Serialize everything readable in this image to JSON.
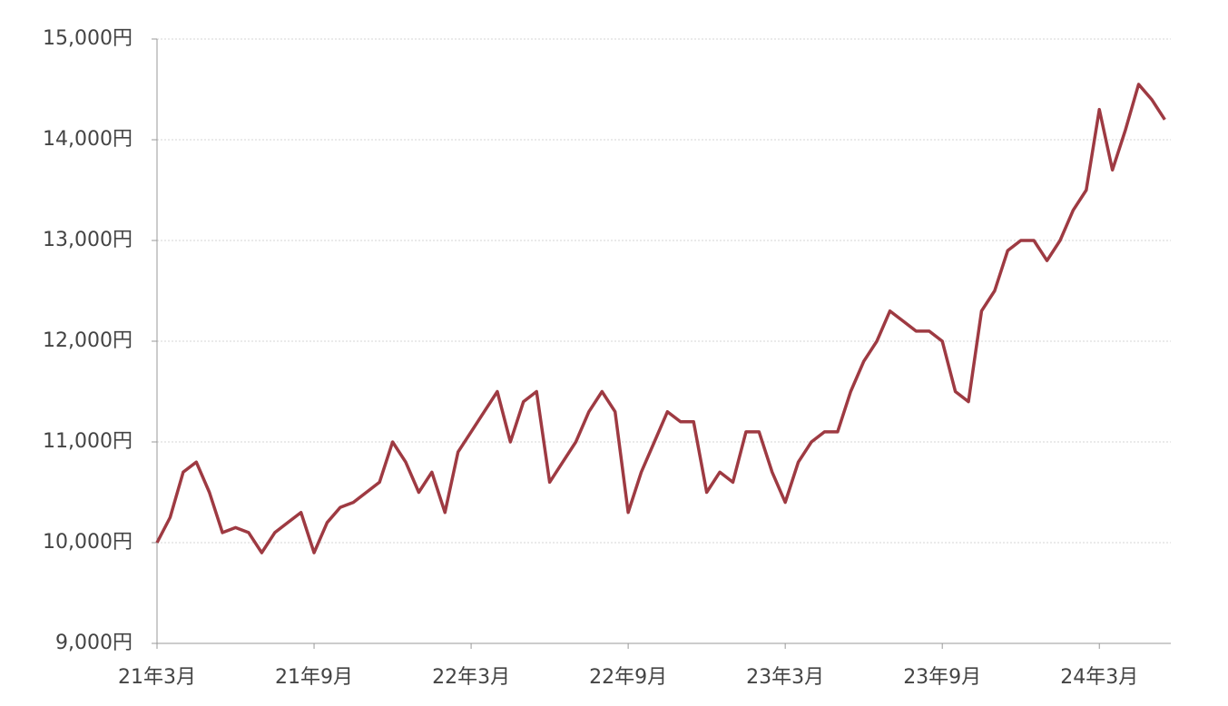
{
  "chart_data": {
    "type": "line",
    "categories": [
      "21年3月",
      null,
      null,
      null,
      null,
      null,
      null,
      null,
      null,
      null,
      null,
      null,
      "21年9月",
      null,
      null,
      null,
      null,
      null,
      null,
      null,
      null,
      null,
      null,
      null,
      "22年3月",
      null,
      null,
      null,
      null,
      null,
      null,
      null,
      null,
      null,
      null,
      null,
      "22年9月",
      null,
      null,
      null,
      null,
      null,
      null,
      null,
      null,
      null,
      null,
      null,
      "23年3月",
      null,
      null,
      null,
      null,
      null,
      null,
      null,
      null,
      null,
      null,
      null,
      "23年9月",
      null,
      null,
      null,
      null,
      null,
      null,
      null,
      null,
      null,
      null,
      null,
      "24年3月",
      null,
      null,
      null,
      null,
      null
    ],
    "values": [
      10000,
      10250,
      10700,
      10800,
      10500,
      10100,
      10150,
      10100,
      9900,
      10100,
      10200,
      10300,
      9900,
      10200,
      10350,
      10400,
      10500,
      10600,
      11000,
      10800,
      10500,
      10700,
      10300,
      10900,
      11100,
      11300,
      11500,
      11000,
      11400,
      11500,
      10600,
      10800,
      11000,
      11300,
      11500,
      11300,
      10300,
      10700,
      11000,
      11300,
      11200,
      11200,
      10500,
      10700,
      10600,
      11100,
      11100,
      10700,
      10400,
      10800,
      11000,
      11100,
      11100,
      11500,
      11800,
      12000,
      12300,
      12200,
      12100,
      12100,
      12000,
      11500,
      11400,
      12300,
      12500,
      12900,
      13000,
      13000,
      12800,
      13000,
      13300,
      13500,
      14300,
      13700,
      14100,
      14550,
      14400,
      14200
    ],
    "color": "#9e3a42",
    "ylim": [
      9000,
      15000
    ],
    "yticks": [
      {
        "value": 9000,
        "label": "9,000円"
      },
      {
        "value": 10000,
        "label": "10,000円"
      },
      {
        "value": 11000,
        "label": "11,000円"
      },
      {
        "value": 12000,
        "label": "12,000円"
      },
      {
        "value": 13000,
        "label": "13,000円"
      },
      {
        "value": 14000,
        "label": "14,000円"
      },
      {
        "value": 15000,
        "label": "15,000円"
      }
    ],
    "grid": true
  }
}
